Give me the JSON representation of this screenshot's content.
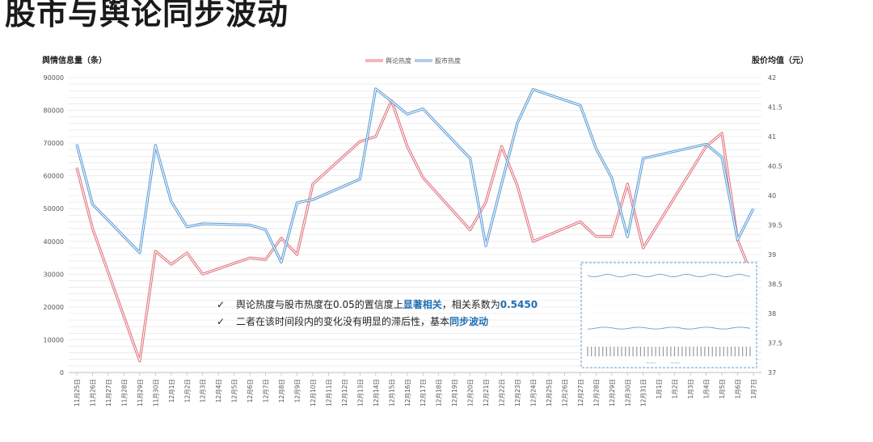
{
  "page": {
    "title": "股市与舆论同步波动"
  },
  "chart_data": {
    "type": "line",
    "ylabel_left": "舆情信息量（条）",
    "ylabel_right": "股价均值（元）",
    "ylim_left": [
      0,
      90000
    ],
    "yticks_left": [
      0,
      10000,
      20000,
      30000,
      40000,
      50000,
      60000,
      70000,
      80000,
      90000
    ],
    "ylim_right": [
      37,
      42
    ],
    "yticks_right": [
      "37",
      "37.5",
      "38",
      "38.5",
      "39",
      "39.5",
      "40",
      "40.5",
      "41",
      "41.5",
      "42"
    ],
    "categories": [
      "11月25日",
      "11月26日",
      "11月27日",
      "11月28日",
      "11月29日",
      "11月30日",
      "12月1日",
      "12月2日",
      "12月3日",
      "12月4日",
      "12月5日",
      "12月6日",
      "12月7日",
      "12月8日",
      "12月9日",
      "12月10日",
      "12月11日",
      "12月12日",
      "12月13日",
      "12月14日",
      "12月15日",
      "12月16日",
      "12月17日",
      "12月18日",
      "12月19日",
      "12月20日",
      "12月21日",
      "12月22日",
      "12月23日",
      "12月24日",
      "12月25日",
      "12月26日",
      "12月27日",
      "12月28日",
      "12月29日",
      "12月30日",
      "12月31日",
      "1月1日",
      "1月2日",
      "1月3日",
      "1月4日",
      "1月5日",
      "1月6日",
      "1月7日"
    ],
    "legend_position": "top-center",
    "grid": true,
    "series": [
      {
        "name": "舆论热度",
        "axis": "left",
        "color": "#e0707c",
        "points": [
          [
            0,
            62500
          ],
          [
            1,
            44000
          ],
          [
            4,
            3500
          ],
          [
            5,
            37000
          ],
          [
            6,
            33000
          ],
          [
            7,
            36500
          ],
          [
            8,
            30000
          ],
          [
            11,
            35000
          ],
          [
            12,
            34500
          ],
          [
            13,
            41000
          ],
          [
            14,
            36000
          ],
          [
            15,
            57500
          ],
          [
            18,
            70500
          ],
          [
            19,
            72000
          ],
          [
            20,
            83000
          ],
          [
            21,
            69000
          ],
          [
            22,
            59500
          ],
          [
            25,
            43500
          ],
          [
            26,
            52000
          ],
          [
            27,
            69000
          ],
          [
            28,
            57000
          ],
          [
            29,
            40000
          ],
          [
            32,
            46000
          ],
          [
            33,
            41500
          ],
          [
            34,
            41500
          ],
          [
            35,
            57500
          ],
          [
            36,
            38000
          ],
          [
            40,
            69000
          ],
          [
            41,
            73000
          ],
          [
            42,
            40500
          ],
          [
            43,
            28500
          ]
        ]
      },
      {
        "name": "股市热度",
        "axis": "right",
        "color": "#5b9bd5",
        "points": [
          [
            0,
            40.87
          ],
          [
            1,
            39.85
          ],
          [
            4,
            39.03
          ],
          [
            5,
            40.85
          ],
          [
            6,
            39.9
          ],
          [
            7,
            39.47
          ],
          [
            8,
            39.52
          ],
          [
            11,
            39.5
          ],
          [
            12,
            39.42
          ],
          [
            13,
            38.87
          ],
          [
            14,
            39.88
          ],
          [
            15,
            39.93
          ],
          [
            18,
            40.28
          ],
          [
            19,
            41.81
          ],
          [
            20,
            41.6
          ],
          [
            21,
            41.38
          ],
          [
            22,
            41.47
          ],
          [
            25,
            40.63
          ],
          [
            26,
            39.15
          ],
          [
            27,
            40.2
          ],
          [
            28,
            41.23
          ],
          [
            29,
            41.8
          ],
          [
            32,
            41.53
          ],
          [
            33,
            40.8
          ],
          [
            34,
            40.3
          ],
          [
            35,
            39.3
          ],
          [
            36,
            40.63
          ],
          [
            40,
            40.87
          ],
          [
            41,
            40.65
          ],
          [
            42,
            39.25
          ],
          [
            43,
            39.78
          ]
        ]
      }
    ],
    "inset": {
      "label_count": 44
    }
  },
  "notes": [
    {
      "mark": "✓",
      "text_before": "舆论热度与股市热度在0.05的置信度上",
      "highlight": "显著相关",
      "text_after": "，相关系数为",
      "highlight2": "0.5450"
    },
    {
      "mark": "✓",
      "text_before": "二者在该时间段内的变化没有明显的滞后性，基本",
      "highlight": "同步波动",
      "text_after": "",
      "highlight2": ""
    }
  ],
  "colors": {
    "grid": "#e2e2e2",
    "axis": "#bfbfbf",
    "highlight": "#1f6fb4",
    "inset_border": "#5b9bd5"
  }
}
